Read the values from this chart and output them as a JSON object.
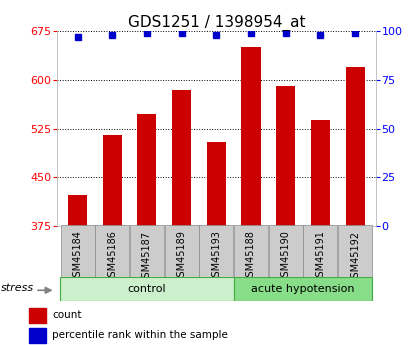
{
  "title": "GDS1251 / 1398954_at",
  "samples": [
    "GSM45184",
    "GSM45186",
    "GSM45187",
    "GSM45189",
    "GSM45193",
    "GSM45188",
    "GSM45190",
    "GSM45191",
    "GSM45192"
  ],
  "bar_values": [
    422,
    515,
    548,
    585,
    505,
    650,
    590,
    538,
    620
  ],
  "percentile_values": [
    97,
    98,
    99,
    99,
    98,
    99,
    99,
    98,
    99
  ],
  "groups": [
    {
      "label": "control",
      "start": 0,
      "end": 5,
      "color": "#ccf0cc"
    },
    {
      "label": "acute hypotension",
      "start": 5,
      "end": 9,
      "color": "#88dd88"
    }
  ],
  "bar_color": "#cc0000",
  "dot_color": "#0000cc",
  "ylim_left": [
    375,
    675
  ],
  "ylim_right": [
    0,
    100
  ],
  "yticks_left": [
    375,
    450,
    525,
    600,
    675
  ],
  "yticks_right": [
    0,
    25,
    50,
    75,
    100
  ],
  "title_fontsize": 11,
  "tick_fontsize": 8,
  "label_fontsize": 7,
  "group_fontsize": 8,
  "legend_fontsize": 7.5,
  "stress_fontsize": 8
}
